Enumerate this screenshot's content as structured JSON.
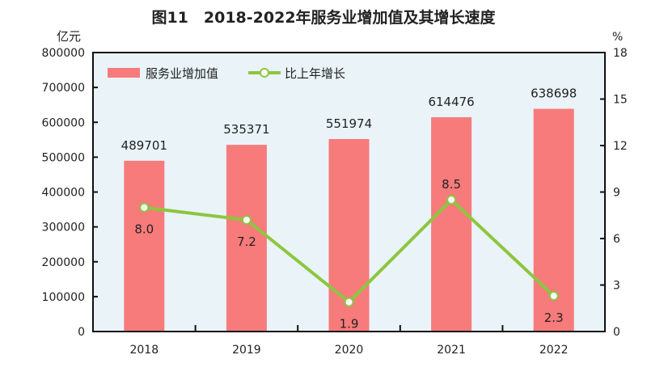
{
  "chart_data": {
    "type": "bar+line",
    "title": "图11　2018-2022年服务业增加值及其增长速度",
    "categories": [
      "2018",
      "2019",
      "2020",
      "2021",
      "2022"
    ],
    "y_left": {
      "unit": "亿元",
      "range": [
        0,
        800000
      ],
      "ticks": [
        "0",
        "100000",
        "200000",
        "300000",
        "400000",
        "500000",
        "600000",
        "700000",
        "800000"
      ]
    },
    "y_right": {
      "unit": "%",
      "range": [
        0,
        18
      ],
      "ticks": [
        "0",
        "3",
        "6",
        "9",
        "12",
        "15",
        "18"
      ]
    },
    "series": [
      {
        "name": "服务业增加值",
        "type": "bar",
        "axis": "left",
        "values": [
          489701,
          535371,
          551974,
          614476,
          638698
        ],
        "labels": [
          "489701",
          "535371",
          "551974",
          "614476",
          "638698"
        ]
      },
      {
        "name": "比上年增长",
        "type": "line",
        "axis": "right",
        "values": [
          8.0,
          7.2,
          1.9,
          8.5,
          2.3
        ],
        "labels": [
          "8.0",
          "7.2",
          "1.9",
          "8.5",
          "2.3"
        ]
      }
    ],
    "legend": "top-left",
    "grid": false,
    "colors": {
      "bar": "#f77b7b",
      "line": "#8cc63f",
      "plot_bg": "#eaf3f8"
    }
  }
}
